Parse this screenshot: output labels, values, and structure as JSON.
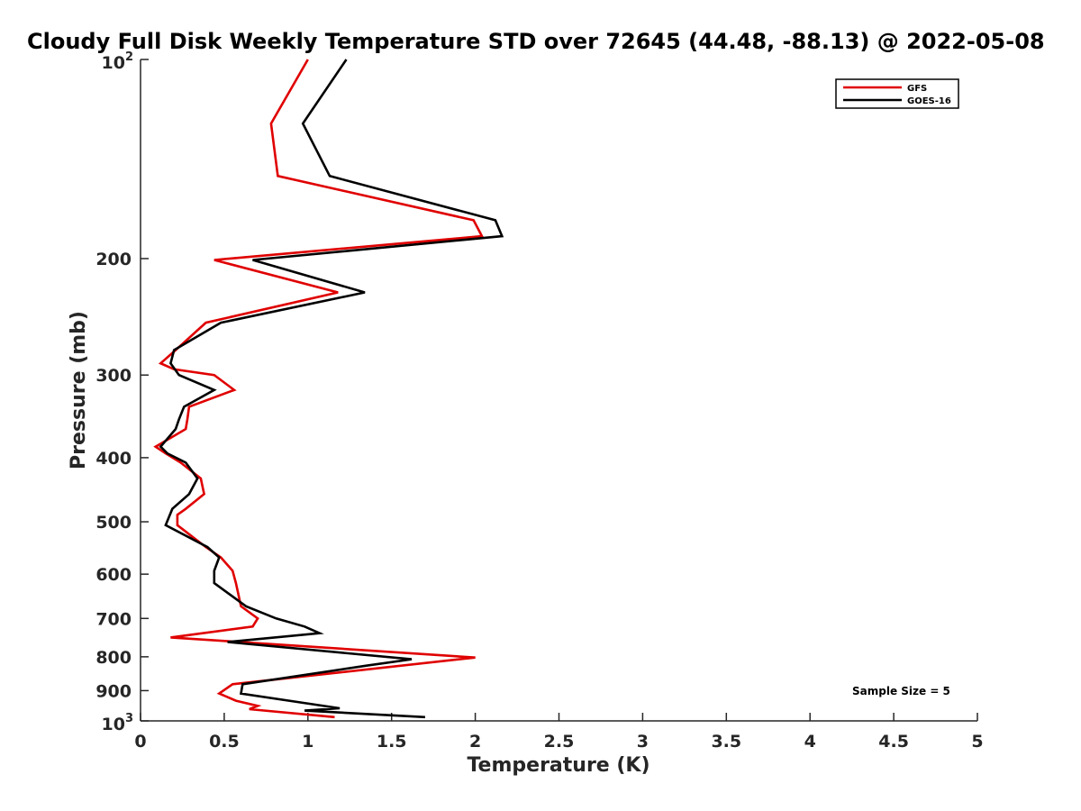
{
  "chart_data": {
    "type": "line",
    "title": "Cloudy Full Disk Weekly Temperature STD over 72645 (44.48, -88.13) @ 2022-05-08",
    "xlabel": "Temperature (K)",
    "ylabel": "Pressure (mb)",
    "xlim": [
      0,
      5
    ],
    "ylim": [
      100,
      1000
    ],
    "y_scale": "log",
    "y_reversed": true,
    "x_ticks": [
      0,
      0.5,
      1,
      1.5,
      2,
      2.5,
      3,
      3.5,
      4,
      4.5,
      5
    ],
    "x_tick_labels": [
      "0",
      "0.5",
      "1",
      "1.5",
      "2",
      "2.5",
      "3",
      "3.5",
      "4",
      "4.5",
      "5"
    ],
    "y_ticks_plain": [
      200,
      300,
      400,
      500,
      600,
      700,
      800,
      900
    ],
    "y_tick_labels_plain": [
      "200",
      "300",
      "400",
      "500",
      "600",
      "700",
      "800",
      "900"
    ],
    "y_ticks_power": [
      {
        "value": 100,
        "base": "10",
        "exp": "2"
      },
      {
        "value": 1000,
        "base": "10",
        "exp": "3"
      }
    ],
    "legend_position": "top-right",
    "annotation": "Sample Size = 5",
    "series": [
      {
        "name": "GFS",
        "color": "#e00000",
        "points": [
          [
            1.0,
            100
          ],
          [
            0.78,
            125
          ],
          [
            0.82,
            150
          ],
          [
            1.99,
            175
          ],
          [
            2.04,
            185
          ],
          [
            0.44,
            201
          ],
          [
            1.18,
            225
          ],
          [
            0.39,
            250
          ],
          [
            0.21,
            275
          ],
          [
            0.12,
            288
          ],
          [
            0.2,
            294
          ],
          [
            0.44,
            300
          ],
          [
            0.56,
            316
          ],
          [
            0.29,
            335
          ],
          [
            0.28,
            350
          ],
          [
            0.27,
            362
          ],
          [
            0.09,
            385
          ],
          [
            0.15,
            394
          ],
          [
            0.24,
            407
          ],
          [
            0.36,
            430
          ],
          [
            0.38,
            454
          ],
          [
            0.27,
            478
          ],
          [
            0.22,
            488
          ],
          [
            0.22,
            506
          ],
          [
            0.39,
            546
          ],
          [
            0.48,
            566
          ],
          [
            0.55,
            593
          ],
          [
            0.57,
            619
          ],
          [
            0.6,
            671
          ],
          [
            0.7,
            700
          ],
          [
            0.67,
            720
          ],
          [
            0.18,
            748
          ],
          [
            2.0,
            802
          ],
          [
            0.55,
            880
          ],
          [
            0.47,
            909
          ],
          [
            0.57,
            932
          ],
          [
            0.7,
            949
          ],
          [
            0.65,
            960
          ],
          [
            1.16,
            987
          ]
        ]
      },
      {
        "name": "GOES-16",
        "color": "#000000",
        "points": [
          [
            1.23,
            100
          ],
          [
            0.97,
            125
          ],
          [
            1.13,
            150
          ],
          [
            2.12,
            175
          ],
          [
            2.16,
            185
          ],
          [
            0.67,
            201
          ],
          [
            1.34,
            225
          ],
          [
            0.48,
            250
          ],
          [
            0.2,
            275
          ],
          [
            0.18,
            288
          ],
          [
            0.23,
            300
          ],
          [
            0.44,
            316
          ],
          [
            0.26,
            335
          ],
          [
            0.23,
            350
          ],
          [
            0.21,
            362
          ],
          [
            0.12,
            385
          ],
          [
            0.16,
            394
          ],
          [
            0.27,
            407
          ],
          [
            0.34,
            430
          ],
          [
            0.29,
            454
          ],
          [
            0.19,
            478
          ],
          [
            0.15,
            506
          ],
          [
            0.4,
            546
          ],
          [
            0.47,
            566
          ],
          [
            0.44,
            593
          ],
          [
            0.44,
            619
          ],
          [
            0.63,
            671
          ],
          [
            0.81,
            700
          ],
          [
            0.98,
            720
          ],
          [
            1.07,
            737
          ],
          [
            0.52,
            760
          ],
          [
            1.62,
            807
          ],
          [
            1.35,
            825
          ],
          [
            0.61,
            880
          ],
          [
            0.6,
            909
          ],
          [
            1.19,
            957
          ],
          [
            0.98,
            965
          ],
          [
            1.7,
            987
          ]
        ]
      }
    ]
  }
}
